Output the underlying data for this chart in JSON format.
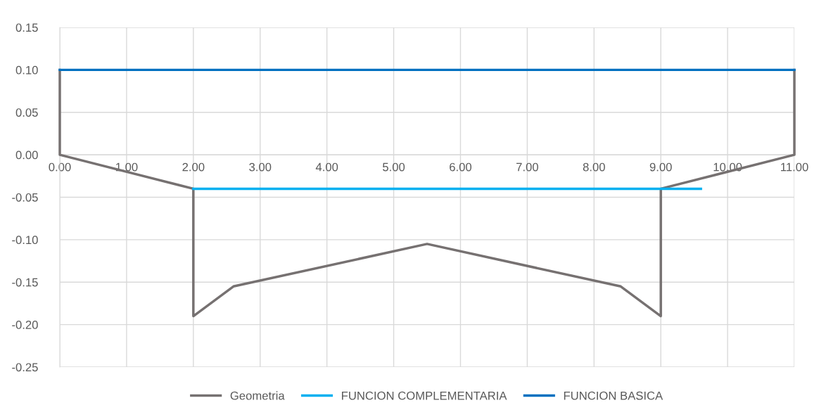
{
  "chart_data": {
    "type": "line",
    "series": [
      {
        "name": "Geometria",
        "color": "#767171",
        "x": [
          0,
          0,
          2,
          2,
          2.6,
          5.5,
          8.4,
          9,
          9,
          11,
          11
        ],
        "values": [
          0.1,
          0,
          -0.04,
          -0.19,
          -0.155,
          -0.105,
          -0.155,
          -0.19,
          -0.04,
          0,
          0.1
        ]
      },
      {
        "name": "FUNCION COMPLEMENTARIA",
        "color": "#00b0f0",
        "x": [
          2,
          9.6
        ],
        "values": [
          -0.04,
          -0.04
        ]
      },
      {
        "name": "FUNCION BASICA",
        "color": "#0070c0",
        "x": [
          0,
          11
        ],
        "values": [
          0.1,
          0.1
        ]
      }
    ],
    "xlim": [
      0,
      11
    ],
    "xticks": [
      {
        "value": 0,
        "label": "0.00"
      },
      {
        "value": 1,
        "label": "1.00"
      },
      {
        "value": 2,
        "label": "2.00"
      },
      {
        "value": 3,
        "label": "3.00"
      },
      {
        "value": 4,
        "label": "4.00"
      },
      {
        "value": 5,
        "label": "5.00"
      },
      {
        "value": 6,
        "label": "6.00"
      },
      {
        "value": 7,
        "label": "7.00"
      },
      {
        "value": 8,
        "label": "8.00"
      },
      {
        "value": 9,
        "label": "9.00"
      },
      {
        "value": 10,
        "label": "10.00"
      },
      {
        "value": 11,
        "label": "11.00"
      }
    ],
    "ylim": [
      -0.25,
      0.15
    ],
    "yticks": [
      {
        "value": -0.25,
        "label": "-0.25"
      },
      {
        "value": -0.2,
        "label": "-0.20"
      },
      {
        "value": -0.15,
        "label": "-0.15"
      },
      {
        "value": -0.1,
        "label": "-0.10"
      },
      {
        "value": -0.05,
        "label": "-0.05"
      },
      {
        "value": 0,
        "label": "0.00"
      },
      {
        "value": 0.05,
        "label": "0.05"
      },
      {
        "value": 0.1,
        "label": "0.10"
      },
      {
        "value": 0.15,
        "label": "0.15"
      }
    ],
    "grid": true,
    "legend": "bottom",
    "marker": "none",
    "line_style": "solid"
  }
}
